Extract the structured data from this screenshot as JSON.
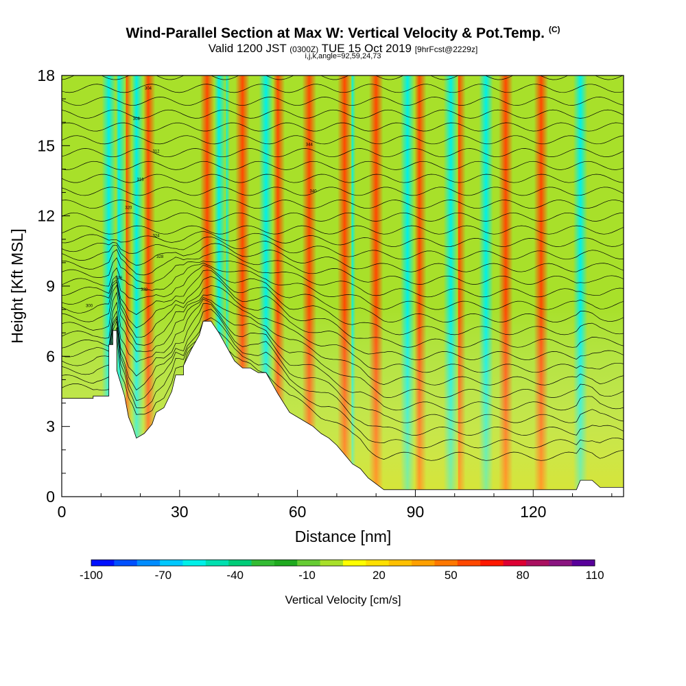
{
  "title": {
    "main": "Wind-Parallel Section at Max W: Vertical Velocity & Pot.Temp.",
    "copyright": "(C)",
    "valid_prefix": "Valid 1200 JST",
    "valid_utc": "(0300Z)",
    "valid_date": "TUE 15 Oct 2019",
    "forecast": "[9hrFcst@2229z]",
    "params": "i,j,k,angle=92,59,24,73"
  },
  "chart_data": {
    "type": "heatmap",
    "xlabel": "Distance [nm]",
    "ylabel": "Height [Kft MSL]",
    "xlim": [
      0,
      143
    ],
    "ylim": [
      0,
      18
    ],
    "x_ticks": [
      0,
      30,
      60,
      90,
      120
    ],
    "y_ticks": [
      0,
      3,
      6,
      9,
      12,
      15,
      18
    ],
    "colorbar": {
      "label": "Vertical Velocity [cm/s]",
      "tick_labels": [
        "-100",
        "-70",
        "-40",
        "-10",
        "20",
        "50",
        "80",
        "110"
      ],
      "levels": [
        -100,
        -90,
        -80,
        -70,
        -60,
        -50,
        -40,
        -30,
        -20,
        -10,
        0,
        10,
        20,
        30,
        40,
        50,
        60,
        70,
        80,
        90,
        100,
        110
      ],
      "colors": [
        "#0010ff",
        "#0050ff",
        "#008cff",
        "#00c8ff",
        "#00f0e8",
        "#00e0b0",
        "#00cc78",
        "#33bb33",
        "#1faa1f",
        "#66cc33",
        "#a8e02a",
        "#ffff00",
        "#ffe000",
        "#ffc000",
        "#ffa000",
        "#ff7800",
        "#ff4800",
        "#ff1800",
        "#dd0033",
        "#aa1060",
        "#8a1580",
        "#58009a"
      ]
    },
    "updraft_bands_x": [
      16,
      22,
      37,
      46,
      55,
      63,
      72,
      80,
      91,
      101,
      113,
      122
    ],
    "downdraft_bands_x": [
      12,
      14.5,
      19,
      40,
      41,
      52,
      73,
      88,
      99,
      108,
      132
    ],
    "isentrope_labels": [
      "300",
      "304",
      "308",
      "312",
      "316",
      "320",
      "324",
      "328",
      "332",
      "336",
      "340",
      "344"
    ]
  }
}
